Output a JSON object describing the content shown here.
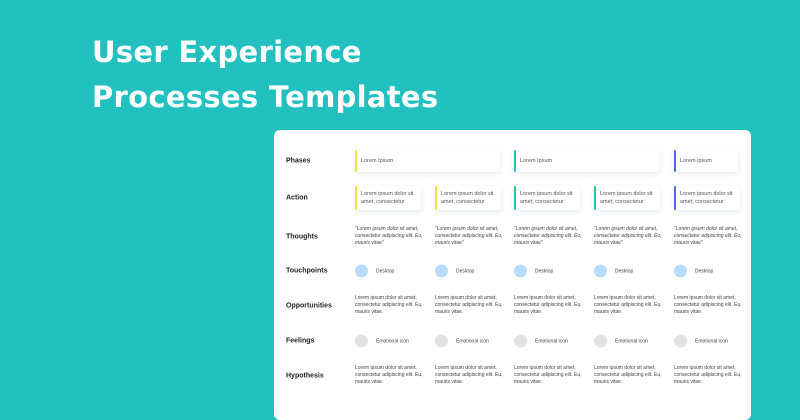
{
  "hero": {
    "line1": "User Experience",
    "line2": "Processes Templates"
  },
  "colors": {
    "background": "#22c1c0",
    "yellow": "#f2e43a",
    "teal": "#22c1b0",
    "blue": "#5a68e0",
    "touch": "#b6dcfb",
    "feel": "#e2e2e2"
  },
  "rows": {
    "phases": "Phases",
    "action": "Action",
    "thoughts": "Thoughts",
    "touchpoints": "Touchpoints",
    "opportunities": "Opportunities",
    "feelings": "Feelings",
    "hypothesis": "Hypothesis"
  },
  "phases": [
    "Lorem Ipsum",
    "Lorem Ipsum",
    "Lorem ipsum"
  ],
  "actions": [
    "Lorem ipsum dolor sit amet, consectetur",
    "Lorem ipsum dolor sit amet, consectetur",
    "Lorem ipsum dolor sit amet, consectetur",
    "Lorem ipsum dolor sit amet, consectetur",
    "Lorem ipsum dolor sit amet, consectetur"
  ],
  "thoughts": [
    "\"Lorem ipsum dolor sit amet, consectetur adipiscing elit. Eu, mauris vitae\"",
    "\"Lorem ipsum dolor sit amet, consectetur adipiscing elit. Eu, mauris vitae\"",
    "\"Lorem ipsum dolor sit amet, consectetur adipiscing elit. Eu, mauris vitae\"",
    "\"Lorem ipsum dolor sit amet, consectetur adipiscing elit. Eu, mauris vitae\"",
    "\"Lorem ipsum dolor sit amet, consectetur adipiscing elit. Eu, mauris vitae\""
  ],
  "touchpoints": [
    "Desktop",
    "Desktop",
    "Desktop",
    "Desktop",
    "Desktop"
  ],
  "opportunities": [
    "Lorem ipsum dolor sit amet, consectetur adipiscing elit. Eu, mauris vitae.",
    "Lorem ipsum dolor sit amet, consectetur adipiscing elit. Eu, mauris vitae.",
    "Lorem ipsum dolor sit amet, consectetur adipiscing elit. Eu, mauris vitae.",
    "Lorem ipsum dolor sit amet, consectetur adipiscing elit. Eu, mauris vitae.",
    "Lorem ipsum dolor sit amet, consectetur adipiscing elit. Eu, mauris vitae."
  ],
  "feelings": [
    "Emotional icon",
    "Emotional icon",
    "Emotional icon",
    "Emotional icon",
    "Emotional icon"
  ],
  "hypothesis": [
    "Lorem ipsum dolor sit amet, consectetur adipiscing elit. Eu, mauris vitae.",
    "Lorem ipsum dolor sit amet, consectetur adipiscing elit. Eu, mauris vitae.",
    "Lorem ipsum dolor sit amet, consectetur adipiscing elit. Eu, mauris vitae.",
    "Lorem ipsum dolor sit amet, consectetur adipiscing elit. Eu, mauris vitae.",
    "Lorem ipsum dolor sit amet, consectetur adipiscing elit. Eu, mauris vitae."
  ]
}
